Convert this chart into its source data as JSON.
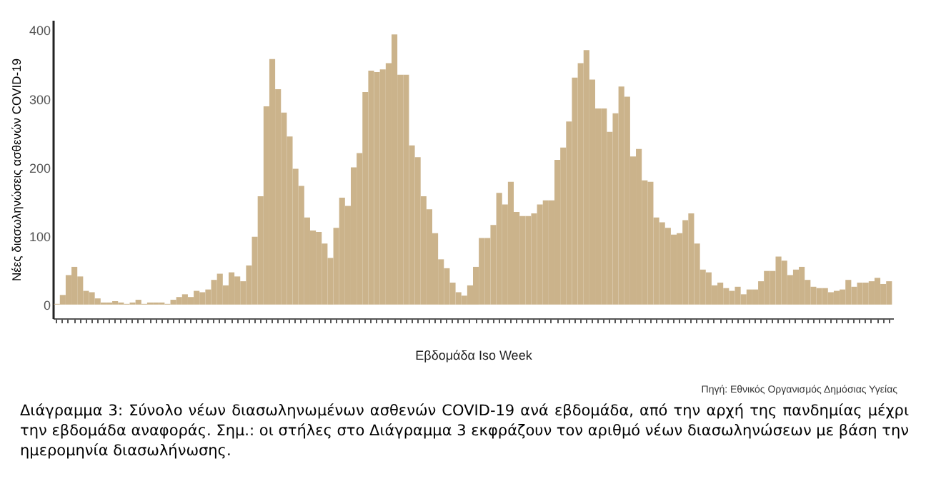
{
  "chart_data": {
    "type": "bar",
    "xlabel": "Εβδομάδα Iso Week",
    "ylabel": "Νέες διασωληνώσεις ασθενών COVID-19",
    "categories": [
      null,
      null,
      null,
      null,
      null,
      null,
      null,
      null,
      null,
      null,
      null,
      null,
      null,
      null,
      null,
      null,
      null,
      null,
      null,
      null,
      null,
      null,
      null,
      null,
      null,
      null,
      null,
      null,
      null,
      null,
      null,
      null,
      null,
      null,
      null,
      null,
      null,
      null,
      null,
      null,
      null,
      null,
      null,
      null,
      null,
      null,
      null,
      null,
      null,
      null,
      null,
      null,
      null,
      null,
      null,
      null,
      null,
      null,
      null,
      null,
      null,
      null,
      null,
      null,
      null,
      null,
      null,
      null,
      null,
      null,
      null,
      null,
      null,
      null,
      null,
      null,
      null,
      null,
      null,
      null,
      null,
      null,
      null,
      null,
      null,
      null,
      null,
      null,
      null,
      null,
      null,
      null,
      null,
      null,
      null,
      null,
      null,
      null,
      null,
      null,
      null,
      null,
      null,
      null,
      null,
      null,
      null,
      null,
      null,
      null,
      null,
      null,
      null,
      null,
      null,
      null,
      null,
      null,
      null,
      null,
      null,
      null,
      null,
      null,
      null,
      null,
      null,
      null,
      null,
      null,
      null,
      null,
      null,
      null,
      null,
      null,
      null,
      null,
      null,
      null,
      null,
      null,
      null,
      null
    ],
    "values": [
      1,
      14,
      43,
      55,
      41,
      20,
      18,
      9,
      3,
      3,
      5,
      3,
      1,
      3,
      7,
      1,
      3,
      3,
      3,
      1,
      7,
      11,
      15,
      11,
      20,
      18,
      22,
      36,
      45,
      28,
      47,
      41,
      34,
      57,
      99,
      158,
      289,
      358,
      314,
      280,
      245,
      198,
      173,
      127,
      108,
      106,
      89,
      68,
      112,
      156,
      144,
      200,
      221,
      310,
      341,
      339,
      343,
      352,
      394,
      335,
      335,
      232,
      215,
      158,
      139,
      104,
      66,
      53,
      32,
      18,
      13,
      28,
      55,
      97,
      97,
      116,
      163,
      146,
      179,
      135,
      129,
      129,
      133,
      146,
      152,
      152,
      211,
      229,
      267,
      331,
      352,
      371,
      328,
      286,
      286,
      252,
      279,
      318,
      303,
      216,
      227,
      181,
      179,
      127,
      120,
      112,
      102,
      104,
      123,
      133,
      89,
      51,
      47,
      28,
      32,
      24,
      20,
      26,
      15,
      22,
      22,
      34,
      49,
      49,
      70,
      64,
      43,
      51,
      55,
      36,
      26,
      24,
      24,
      18,
      20,
      22,
      36,
      26,
      32,
      32,
      34,
      39,
      30,
      34
    ],
    "color": "#cbb38b",
    "ylim": [
      -20,
      415
    ],
    "yticks": [
      0,
      100,
      200,
      300,
      400
    ],
    "grid": false,
    "annotations": [
      "Πηγή: Εθνικός Οργανισμός Δημόσιας Υγείας",
      "Διάγραμμα 3: Σύνολο νέων διασωληνωμένων ασθενών COVID-19 ανά εβδομάδα, από την αρχή της πανδημίας μέχρι την εβδομάδα αναφοράς.  Σημ.: οι στήλες στο Διάγραμμα 3 εκφράζουν τον αριθμό νέων διασωληνώσεων με βάση την ημερομηνία διασωλήνωσης."
    ]
  }
}
